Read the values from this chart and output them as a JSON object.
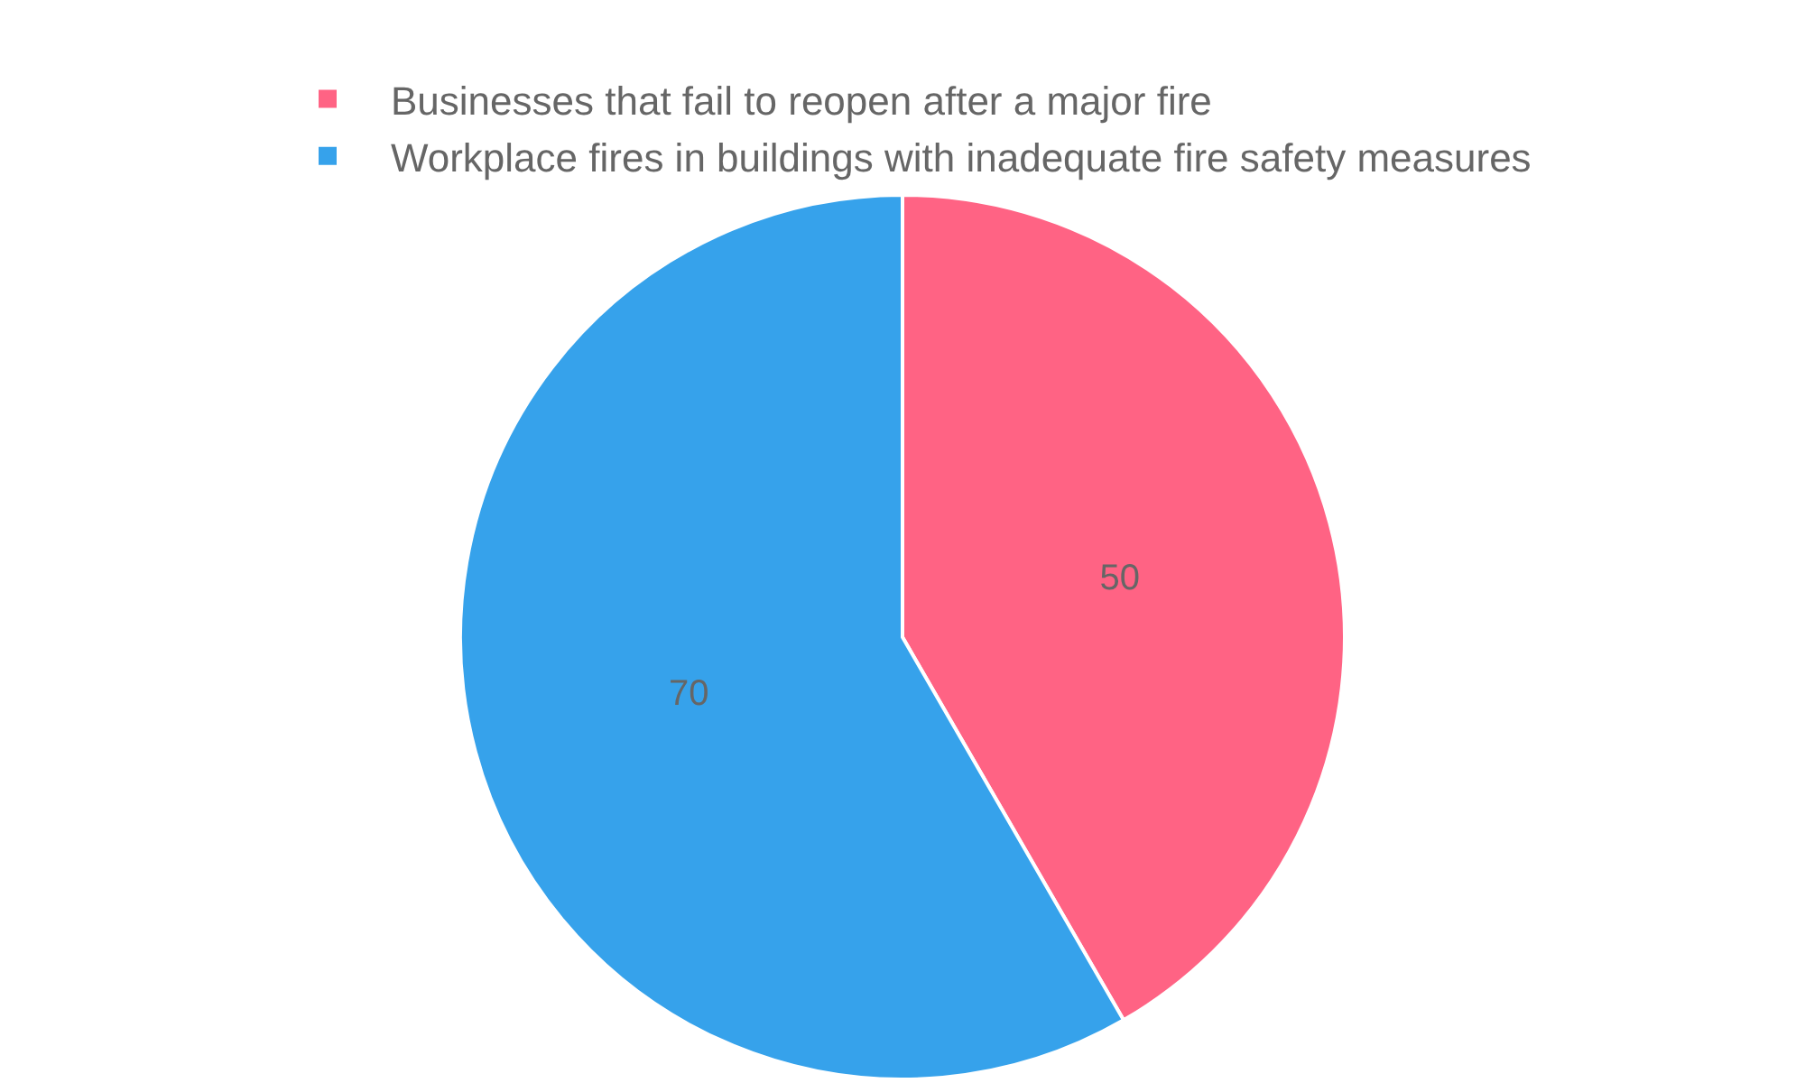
{
  "chart_data": {
    "type": "pie",
    "categories": [
      "Businesses that fail to reopen after a major fire",
      "Workplace fires in buildings with inadequate fire safety measures"
    ],
    "values": [
      50,
      70
    ],
    "colors": [
      "#ff6384",
      "#36a2eb"
    ],
    "data_labels": true,
    "legend": "top"
  }
}
